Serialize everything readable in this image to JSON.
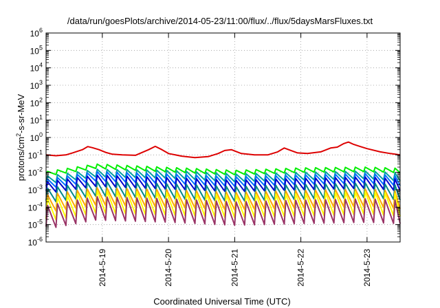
{
  "chart_data": {
    "type": "line",
    "title": "/data/run/goesPlots/archive/2014-05-23/11:00/flux/../flux/5daysMarsFluxes.txt",
    "xlabel": "Coordinated Universal Time (UTC)",
    "ylabel_parts": [
      "protons/cm",
      "2",
      "-s-sr-MeV"
    ],
    "yscale": "log",
    "ylim_exp": [
      -6,
      6
    ],
    "y_ticks": [
      {
        "base": "10",
        "exp": "6",
        "e": 6
      },
      {
        "base": "10",
        "exp": "5",
        "e": 5
      },
      {
        "base": "10",
        "exp": "4",
        "e": 4
      },
      {
        "base": "10",
        "exp": "3",
        "e": 3
      },
      {
        "base": "10",
        "exp": "2",
        "e": 2
      },
      {
        "base": "10",
        "exp": "1",
        "e": 1
      },
      {
        "base": "10",
        "exp": "0",
        "e": 0
      },
      {
        "base": "10",
        "exp": "-1",
        "e": -1
      },
      {
        "base": "10",
        "exp": "-2",
        "e": -2
      },
      {
        "base": "10",
        "exp": "-3",
        "e": -3
      },
      {
        "base": "10",
        "exp": "-4",
        "e": -4
      },
      {
        "base": "10",
        "exp": "-5",
        "e": -5
      },
      {
        "base": "10",
        "exp": "-6",
        "e": -6
      }
    ],
    "x_range_days": [
      18.15,
      23.5
    ],
    "x_ticks": [
      {
        "label": "2014-5-19",
        "day": 19
      },
      {
        "label": "2014-5-20",
        "day": 20
      },
      {
        "label": "2014-5-21",
        "day": 21
      },
      {
        "label": "2014-5-22",
        "day": 22
      },
      {
        "label": "2014-5-23",
        "day": 23
      }
    ],
    "grid": true,
    "sawtooth_period_days": 0.15,
    "series": [
      {
        "color": "#dd0000",
        "smooth": true,
        "points": [
          [
            18.15,
            0.1
          ],
          [
            18.3,
            0.09
          ],
          [
            18.45,
            0.1
          ],
          [
            18.55,
            0.13
          ],
          [
            18.7,
            0.2
          ],
          [
            18.78,
            0.3
          ],
          [
            18.85,
            0.26
          ],
          [
            18.95,
            0.2
          ],
          [
            19.05,
            0.14
          ],
          [
            19.15,
            0.11
          ],
          [
            19.3,
            0.1
          ],
          [
            19.5,
            0.095
          ],
          [
            19.7,
            0.2
          ],
          [
            19.8,
            0.31
          ],
          [
            19.9,
            0.2
          ],
          [
            20.0,
            0.12
          ],
          [
            20.2,
            0.085
          ],
          [
            20.4,
            0.07
          ],
          [
            20.6,
            0.08
          ],
          [
            20.75,
            0.12
          ],
          [
            20.85,
            0.18
          ],
          [
            20.95,
            0.2
          ],
          [
            21.1,
            0.12
          ],
          [
            21.3,
            0.1
          ],
          [
            21.5,
            0.1
          ],
          [
            21.65,
            0.15
          ],
          [
            21.75,
            0.25
          ],
          [
            21.85,
            0.18
          ],
          [
            21.95,
            0.13
          ],
          [
            22.1,
            0.12
          ],
          [
            22.3,
            0.15
          ],
          [
            22.45,
            0.25
          ],
          [
            22.55,
            0.28
          ],
          [
            22.65,
            0.45
          ],
          [
            22.72,
            0.55
          ],
          [
            22.8,
            0.4
          ],
          [
            22.9,
            0.3
          ],
          [
            23.0,
            0.23
          ],
          [
            23.2,
            0.15
          ],
          [
            23.35,
            0.12
          ],
          [
            23.5,
            0.1
          ]
        ]
      },
      {
        "color": "#00ee00",
        "top": [
          18.15,
          0.011,
          18.9,
          0.03,
          19.9,
          0.02,
          21.0,
          0.013,
          22.0,
          0.018,
          23.0,
          0.02,
          23.5,
          0.017
        ],
        "ratio": 1.8
      },
      {
        "color": "#00a0a0",
        "top": [
          18.15,
          0.006,
          18.9,
          0.015,
          20.0,
          0.013,
          21.0,
          0.008,
          22.0,
          0.01,
          23.0,
          0.012,
          23.5,
          0.009
        ],
        "ratio": 2.8
      },
      {
        "color": "#0070ff",
        "top": [
          18.15,
          0.004,
          18.9,
          0.011,
          20.0,
          0.008,
          21.0,
          0.0055,
          22.0,
          0.007,
          23.0,
          0.0085,
          23.5,
          0.006
        ],
        "ratio": 3.5
      },
      {
        "color": "#0000cc",
        "top": [
          18.15,
          0.0028,
          18.9,
          0.007,
          20.0,
          0.005,
          21.0,
          0.0035,
          22.0,
          0.0045,
          23.0,
          0.0055,
          23.5,
          0.004
        ],
        "ratio": 4.5
      },
      {
        "color": "#008888",
        "top": [
          18.15,
          0.0012,
          18.9,
          0.003,
          20.0,
          0.0022,
          21.0,
          0.0015,
          22.0,
          0.002,
          23.0,
          0.0025,
          23.5,
          0.0018
        ],
        "ratio": 7
      },
      {
        "color": "#ffa500",
        "top": [
          18.15,
          0.0005,
          18.9,
          0.0013,
          20.0,
          0.001,
          21.0,
          0.0007,
          22.0,
          0.0009,
          23.0,
          0.0011,
          23.5,
          0.0008
        ],
        "ratio": 10
      },
      {
        "color": "#ffff00",
        "top": [
          18.15,
          0.0003,
          18.9,
          0.0009,
          20.0,
          0.0007,
          21.0,
          0.0005,
          22.0,
          0.0006,
          23.0,
          0.0008,
          23.5,
          0.0006
        ],
        "ratio": 20
      },
      {
        "color": "#993366",
        "top": [
          18.15,
          0.00012,
          18.9,
          0.0004,
          20.0,
          0.0003,
          21.0,
          0.0002,
          22.0,
          0.00025,
          23.0,
          0.0003,
          23.5,
          0.00025
        ],
        "ratio": 22
      }
    ]
  }
}
